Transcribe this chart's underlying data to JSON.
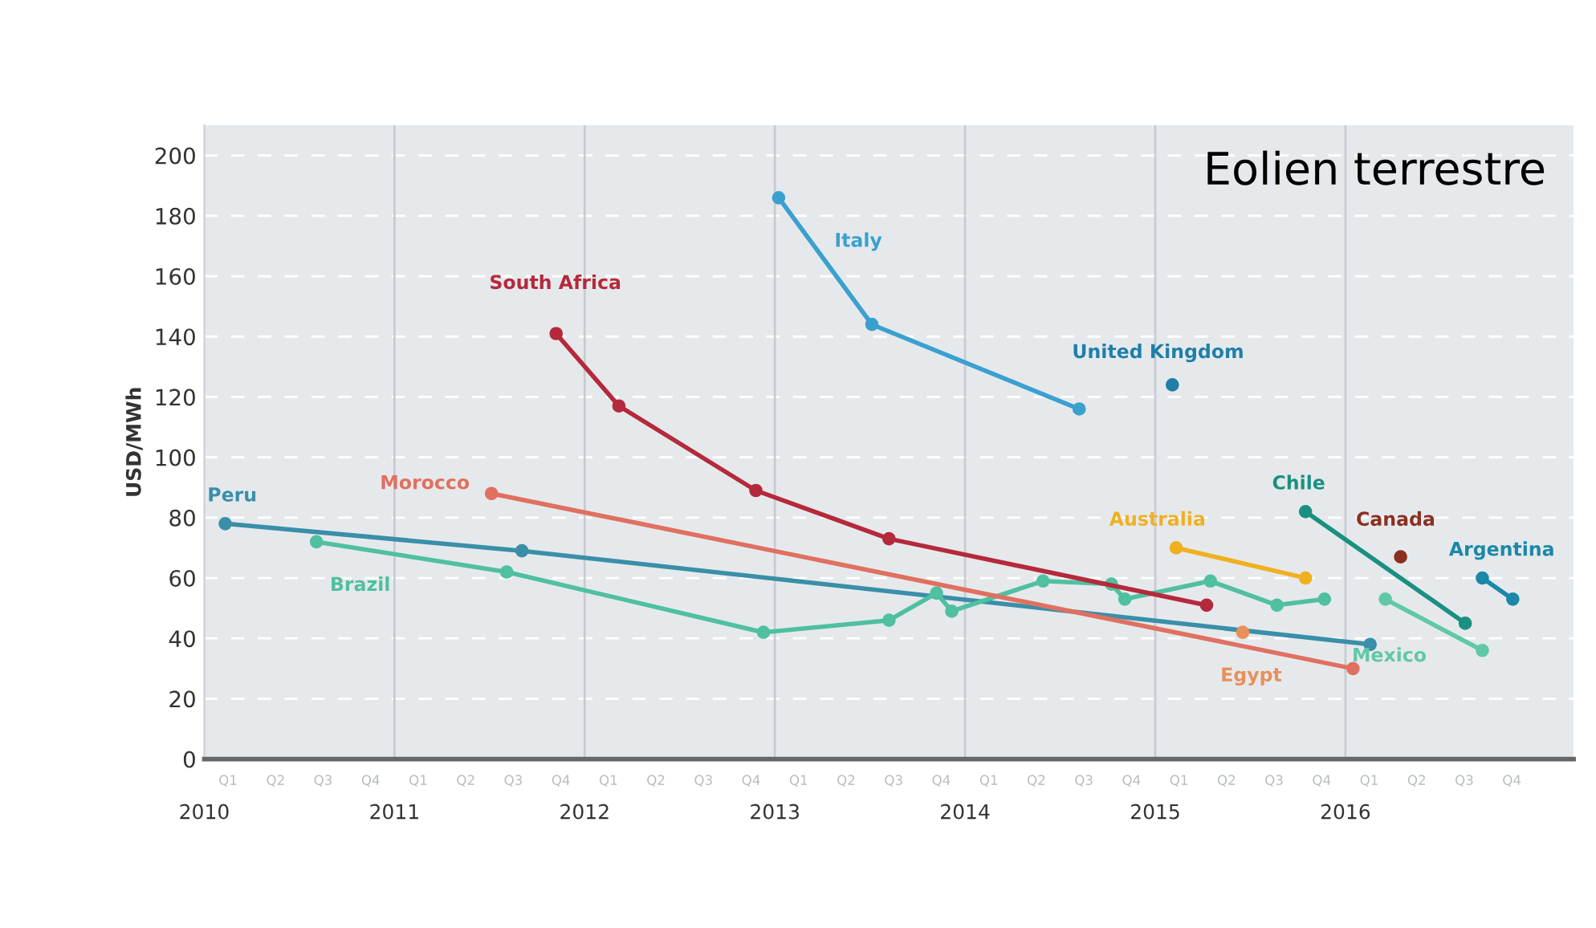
{
  "chart_data": {
    "type": "line",
    "title": "Eolien terrestre",
    "ylabel": "USD/MWh",
    "xlim": [
      2010,
      2017.2
    ],
    "ylim": [
      0,
      210
    ],
    "yticks": [
      0,
      20,
      40,
      60,
      80,
      100,
      120,
      140,
      160,
      180,
      200
    ],
    "annotations": [
      "Q1",
      "Q2",
      "Q3",
      "Q4",
      "Q1",
      "Q2",
      "Q3",
      "Q4",
      "Q1",
      "Q2",
      "Q3",
      "Q4",
      "Q1",
      "Q2",
      "Q3",
      "Q4",
      "Q1",
      "Q2",
      "Q3",
      "Q4",
      "Q1",
      "Q2",
      "Q3",
      "Q4",
      "Q1",
      "Q2",
      "Q3",
      "Q4"
    ],
    "xticks": [
      2010,
      2011,
      2012,
      2013,
      2014,
      2015,
      2016
    ],
    "grid": true,
    "marker": "circle",
    "line_style": "solid",
    "legend": false,
    "series": [
      {
        "name": "Peru",
        "color": "#3a8fa8",
        "x": [
          2010.11,
          2011.67,
          2016.13
        ],
        "values": [
          78,
          69,
          38
        ]
      },
      {
        "name": "Brazil",
        "color": "#4fc0a0",
        "x": [
          2010.59,
          2011.59,
          2012.94,
          2013.6,
          2013.85,
          2013.93,
          2014.41,
          2014.77,
          2014.84,
          2015.29,
          2015.64,
          2015.89
        ],
        "values": [
          72,
          62,
          42,
          46,
          55,
          49,
          59,
          58,
          53,
          59,
          51,
          53
        ]
      },
      {
        "name": "South Africa",
        "color": "#b5293c",
        "x": [
          2011.85,
          2012.18,
          2012.9,
          2013.6,
          2015.27
        ],
        "values": [
          141,
          117,
          89,
          73,
          51
        ]
      },
      {
        "name": "Morocco",
        "color": "#e07060",
        "x": [
          2011.51,
          2016.04
        ],
        "values": [
          88,
          30
        ]
      },
      {
        "name": "Italy",
        "color": "#3aa0d0",
        "x": [
          2013.02,
          2013.51,
          2014.6
        ],
        "values": [
          186,
          144,
          116
        ]
      },
      {
        "name": "United Kingdom",
        "color": "#1f7fa8",
        "x": [
          2015.09
        ],
        "values": [
          124
        ]
      },
      {
        "name": "Australia",
        "color": "#f0b020",
        "x": [
          2015.11,
          2015.79
        ],
        "values": [
          70,
          60
        ]
      },
      {
        "name": "Egypt",
        "color": "#e8905a",
        "x": [
          2015.46
        ],
        "values": [
          42
        ]
      },
      {
        "name": "Chile",
        "color": "#1a9080",
        "x": [
          2015.79,
          2016.63
        ],
        "values": [
          82,
          45
        ]
      },
      {
        "name": "Canada",
        "color": "#8a3020",
        "x": [
          2016.29
        ],
        "values": [
          67
        ]
      },
      {
        "name": "Argentina",
        "color": "#1a88a8",
        "x": [
          2016.72,
          2016.88
        ],
        "values": [
          60,
          53
        ]
      },
      {
        "name": "Mexico",
        "color": "#60c8a8",
        "x": [
          2016.21,
          2016.72
        ],
        "values": [
          53,
          36
        ]
      }
    ]
  }
}
